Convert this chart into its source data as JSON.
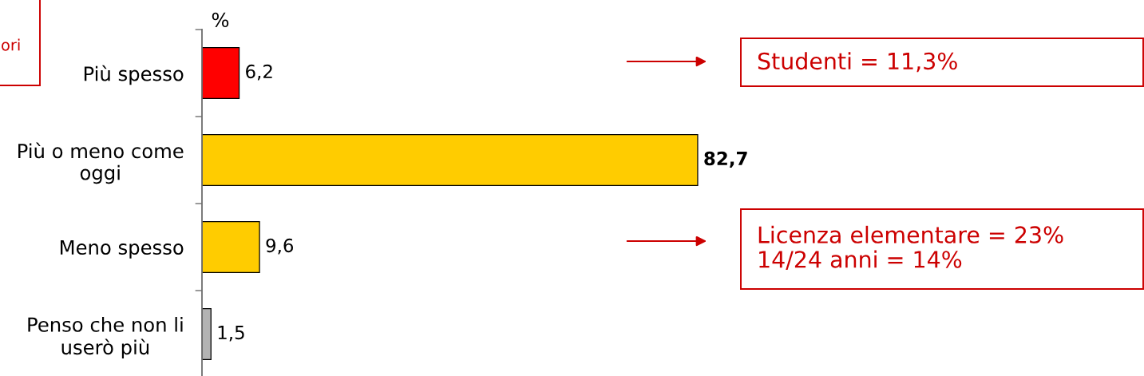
{
  "chart_data": {
    "type": "bar",
    "orientation": "horizontal",
    "xlabel": "%",
    "categories": [
      "Più spesso",
      "Più o meno come\noggi",
      "Meno spesso",
      "Penso che non li\nuserò più"
    ],
    "values": [
      6.2,
      82.7,
      9.6,
      1.5
    ],
    "colors": [
      "#ff0000",
      "#ffcc00",
      "#ffcc00",
      "#b3b3b3"
    ],
    "value_labels": [
      "6,2",
      "82,7",
      "9,6",
      "1,5"
    ],
    "annotations": [
      "ori",
      "Studenti = 11,3%",
      "Licenza elementare = 23%\n14/24 anni = 14%"
    ],
    "tick_labels": "y"
  }
}
